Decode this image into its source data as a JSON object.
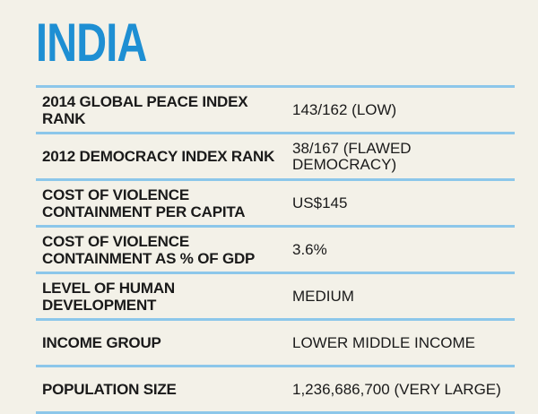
{
  "title": "INDIA",
  "rows": [
    {
      "label": "2014 GLOBAL PEACE INDEX RANK",
      "value": "143/162 (LOW)"
    },
    {
      "label": "2012 DEMOCRACY INDEX RANK",
      "value": "38/167 (FLAWED DEMOCRACY)"
    },
    {
      "label": "COST OF VIOLENCE CONTAINMENT PER CAPITA",
      "value": "US$145"
    },
    {
      "label": "COST OF VIOLENCE CONTAINMENT AS % OF GDP",
      "value": "3.6%"
    },
    {
      "label": "LEVEL OF HUMAN DEVELOPMENT",
      "value": "MEDIUM"
    },
    {
      "label": "INCOME GROUP",
      "value": "LOWER MIDDLE INCOME"
    },
    {
      "label": "POPULATION SIZE",
      "value": "1,236,686,700 (VERY LARGE)"
    }
  ],
  "colors": {
    "accent": "#1e8fd3",
    "divider": "#8cc7ea",
    "background": "#f3f1e8",
    "text": "#1a1a1a"
  }
}
